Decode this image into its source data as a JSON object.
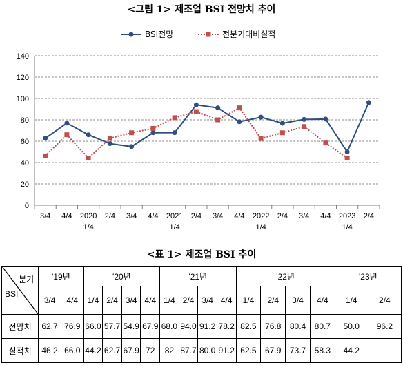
{
  "figure_title": "<그림 1> 제조업 BSI 전망치 추이",
  "table_title": "<표 1> 제조업 BSI 추이",
  "chart_data": {
    "type": "line",
    "categories": [
      "3/4",
      "4/4",
      "2020\n1/4",
      "2/4",
      "3/4",
      "4/4",
      "2021\n1/4",
      "2/4",
      "3/4",
      "4/4",
      "2022\n1/4",
      "2/4",
      "3/4",
      "4/4",
      "2023\n1/4",
      "2/4"
    ],
    "series": [
      {
        "name": "BSI전망",
        "color": "#2e4f80",
        "marker": "circle",
        "values": [
          62.7,
          76.9,
          66.0,
          57.7,
          54.9,
          67.9,
          68.0,
          94.0,
          91.2,
          78.2,
          82.5,
          76.8,
          80.4,
          80.7,
          50.0,
          96.2
        ]
      },
      {
        "name": "전분기대비실적",
        "color": "#c0504d",
        "marker": "square",
        "dash": "dotted",
        "values": [
          46.2,
          66.0,
          44.2,
          62.7,
          67.9,
          72,
          82,
          87.7,
          80.0,
          91.2,
          62.5,
          67.9,
          73.7,
          58.3,
          44.2,
          null
        ]
      }
    ],
    "ylim": [
      0,
      140
    ],
    "yticks": [
      0,
      20,
      40,
      60,
      80,
      100,
      120,
      140
    ],
    "grid": true,
    "legend": "top-center"
  },
  "table": {
    "corner_top": "분기",
    "corner_bottom": "BSI",
    "years": [
      {
        "label": "'19년",
        "span": 2
      },
      {
        "label": "'20년",
        "span": 4
      },
      {
        "label": "'21년",
        "span": 4
      },
      {
        "label": "'22년",
        "span": 4
      },
      {
        "label": "'23년",
        "span": 2
      }
    ],
    "quarters": [
      "3/4",
      "4/4",
      "1/4",
      "2/4",
      "3/4",
      "4/4",
      "1/4",
      "2/4",
      "3/4",
      "4/4",
      "1/4",
      "2/4",
      "3/4",
      "4/4",
      "1/4",
      "2/4"
    ],
    "rows": [
      {
        "label": "전망치",
        "values": [
          "62.7",
          "76.9",
          "66.0",
          "57.7",
          "54.9",
          "67.9",
          "68.0",
          "94.0",
          "91.2",
          "78.2",
          "82.5",
          "76.8",
          "80.4",
          "80.7",
          "50.0",
          "96.2"
        ]
      },
      {
        "label": "실적치",
        "values": [
          "46.2",
          "66.0",
          "44.2",
          "62.7",
          "67.9",
          "72",
          "82",
          "87.7",
          "80.0",
          "91.2",
          "62.5",
          "67.9",
          "73.7",
          "58.3",
          "44.2",
          ""
        ]
      }
    ]
  }
}
